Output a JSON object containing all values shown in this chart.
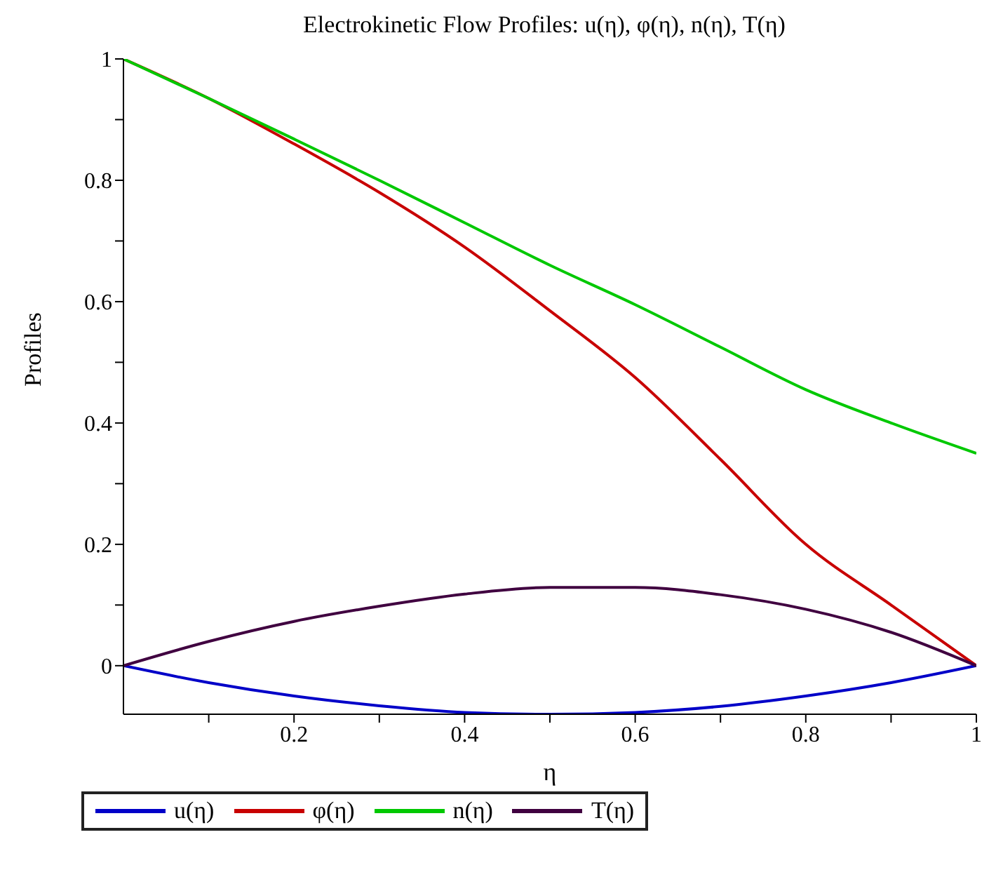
{
  "chart_data": {
    "type": "line",
    "title": "Electrokinetic Flow Profiles: u(η), φ(η), n(η), T(η)",
    "xlabel": "η",
    "ylabel": "Profiles",
    "x": [
      0,
      0.1,
      0.2,
      0.3,
      0.4,
      0.5,
      0.6,
      0.7,
      0.8,
      0.9,
      1
    ],
    "series": [
      {
        "name": "u(η)",
        "color": "#0000c8",
        "values": [
          0,
          -0.028,
          -0.05,
          -0.066,
          -0.077,
          -0.08,
          -0.077,
          -0.067,
          -0.05,
          -0.028,
          0
        ]
      },
      {
        "name": "φ(η)",
        "color": "#c80000",
        "values": [
          1,
          0.935,
          0.86,
          0.78,
          0.69,
          0.585,
          0.475,
          0.34,
          0.2,
          0.1,
          0
        ]
      },
      {
        "name": "n(η)",
        "color": "#00c800",
        "values": [
          1,
          0.935,
          0.868,
          0.8,
          0.73,
          0.66,
          0.595,
          0.525,
          0.455,
          0.4,
          0.35
        ]
      },
      {
        "name": "T(η)",
        "color": "#400040",
        "values": [
          0,
          0.04,
          0.073,
          0.098,
          0.118,
          0.129,
          0.129,
          0.117,
          0.093,
          0.055,
          0
        ]
      }
    ],
    "xlim": [
      0,
      1
    ],
    "ylim": [
      -0.08,
      1
    ],
    "xticks": [
      {
        "value": 0.1,
        "label": null
      },
      0.2,
      {
        "value": 0.3,
        "label": null
      },
      0.4,
      {
        "value": 0.5,
        "label": null
      },
      0.6,
      {
        "value": 0.7,
        "label": null
      },
      0.8,
      {
        "value": 0.9,
        "label": null
      },
      1
    ],
    "yticks": [
      0,
      {
        "value": 0.1,
        "label": null
      },
      0.2,
      {
        "value": 0.3,
        "label": null
      },
      0.4,
      {
        "value": 0.5,
        "label": null
      },
      0.6,
      {
        "value": 0.7,
        "label": null
      },
      0.8,
      {
        "value": 0.9,
        "label": null
      },
      1
    ],
    "legend": "bottom",
    "grid": false,
    "marker": "none",
    "line_style": "solid"
  }
}
